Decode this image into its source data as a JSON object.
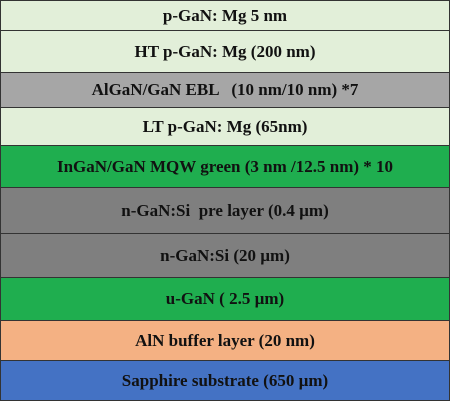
{
  "layers": [
    {
      "label": "p-GaN: Mg 5 nm"
    },
    {
      "label": "HT p-GaN: Mg (200 nm)"
    },
    {
      "label": "AlGaN/GaN EBL   (10 nm/10 nm) *7"
    },
    {
      "label": "LT p-GaN: Mg (65nm)"
    },
    {
      "label": "InGaN/GaN MQW green (3 nm /12.5 nm) * 10"
    },
    {
      "label": "n-GaN:Si  pre layer (0.4 µm)"
    },
    {
      "label": "n-GaN:Si (20 µm)"
    },
    {
      "label": "u-GaN ( 2.5 µm)"
    },
    {
      "label": "AlN buffer layer (20 nm)"
    },
    {
      "label": "Sapphire substrate (650 µm)"
    }
  ]
}
